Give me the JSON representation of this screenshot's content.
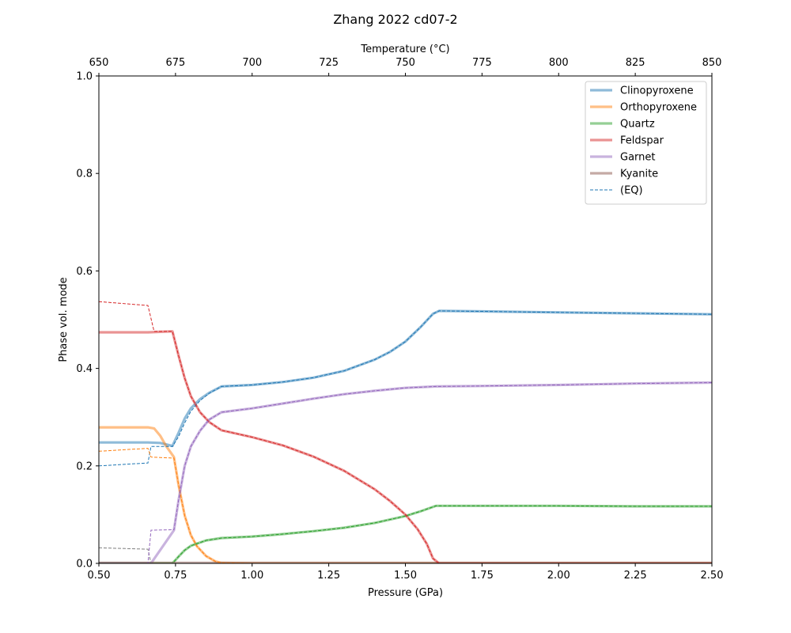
{
  "chart_data": {
    "type": "line",
    "title": "Zhang 2022 cd07-2",
    "xlabel": "Pressure (GPa)",
    "ylabel": "Phase vol. mode",
    "x2label": "Temperature (°C)",
    "xlim": [
      0.5,
      2.5
    ],
    "ylim": [
      0.0,
      1.0
    ],
    "x2lim": [
      650,
      850
    ],
    "xticks": [
      "0.50",
      "0.75",
      "1.00",
      "1.25",
      "1.50",
      "1.75",
      "2.00",
      "2.25",
      "2.50"
    ],
    "yticks": [
      "0.0",
      "0.2",
      "0.4",
      "0.6",
      "0.8",
      "1.0"
    ],
    "x2ticks": [
      "650",
      "675",
      "700",
      "725",
      "750",
      "775",
      "800",
      "825",
      "850"
    ],
    "grid": false,
    "legend_position": "top-right",
    "series": [
      {
        "name": "Clinopyroxene",
        "color": "#1f77b4",
        "x": [
          0.5,
          0.66,
          0.7,
          0.74,
          0.76,
          0.78,
          0.8,
          0.83,
          0.86,
          0.9,
          1.0,
          1.1,
          1.2,
          1.3,
          1.4,
          1.45,
          1.5,
          1.55,
          1.59,
          1.61,
          1.75,
          2.0,
          2.25,
          2.5
        ],
        "y": [
          0.248,
          0.248,
          0.247,
          0.241,
          0.268,
          0.297,
          0.318,
          0.337,
          0.35,
          0.363,
          0.366,
          0.372,
          0.381,
          0.395,
          0.418,
          0.434,
          0.455,
          0.485,
          0.512,
          0.518,
          0.517,
          0.515,
          0.513,
          0.511
        ],
        "eq_x": [
          0.5,
          0.66,
          0.67,
          0.74,
          0.76,
          0.78,
          0.8,
          0.83,
          0.86,
          0.9,
          1.0,
          1.1,
          1.2,
          1.3,
          1.4,
          1.45,
          1.5,
          1.55,
          1.59,
          1.61,
          1.75,
          2.0,
          2.25,
          2.5
        ],
        "eq_y": [
          0.2,
          0.206,
          0.24,
          0.24,
          0.26,
          0.288,
          0.312,
          0.334,
          0.349,
          0.363,
          0.366,
          0.372,
          0.381,
          0.395,
          0.418,
          0.434,
          0.455,
          0.485,
          0.512,
          0.518,
          0.517,
          0.515,
          0.513,
          0.511
        ]
      },
      {
        "name": "Orthopyroxene",
        "color": "#ff7f0e",
        "x": [
          0.5,
          0.66,
          0.68,
          0.7,
          0.72,
          0.745,
          0.76,
          0.78,
          0.8,
          0.82,
          0.85,
          0.88,
          0.9,
          1.0,
          2.5
        ],
        "y": [
          0.279,
          0.279,
          0.277,
          0.262,
          0.24,
          0.218,
          0.16,
          0.098,
          0.058,
          0.035,
          0.015,
          0.004,
          0.001,
          0.0,
          0.0
        ],
        "eq_x": [
          0.5,
          0.66,
          0.67,
          0.74,
          0.745,
          0.76,
          0.78,
          0.8,
          0.82,
          0.85,
          0.88,
          0.9,
          1.0,
          2.5
        ],
        "eq_y": [
          0.23,
          0.236,
          0.218,
          0.216,
          0.216,
          0.16,
          0.098,
          0.058,
          0.035,
          0.015,
          0.004,
          0.001,
          0.0,
          0.0
        ]
      },
      {
        "name": "Quartz",
        "color": "#2ca02c",
        "x": [
          0.5,
          0.74,
          0.76,
          0.78,
          0.8,
          0.85,
          0.9,
          1.0,
          1.1,
          1.2,
          1.3,
          1.4,
          1.5,
          1.55,
          1.6,
          1.75,
          2.0,
          2.25,
          2.5
        ],
        "y": [
          0.0,
          0.0,
          0.014,
          0.027,
          0.036,
          0.047,
          0.052,
          0.055,
          0.06,
          0.066,
          0.073,
          0.083,
          0.097,
          0.107,
          0.118,
          0.118,
          0.118,
          0.117,
          0.117
        ],
        "eq_x": [
          0.5,
          0.74,
          0.76,
          0.78,
          0.8,
          0.85,
          0.9,
          1.0,
          1.1,
          1.2,
          1.3,
          1.4,
          1.5,
          1.55,
          1.6,
          1.75,
          2.0,
          2.25,
          2.5
        ],
        "eq_y": [
          0.0,
          0.0,
          0.014,
          0.027,
          0.036,
          0.047,
          0.052,
          0.055,
          0.06,
          0.066,
          0.073,
          0.083,
          0.097,
          0.107,
          0.118,
          0.118,
          0.118,
          0.117,
          0.117
        ]
      },
      {
        "name": "Feldspar",
        "color": "#d62728",
        "x": [
          0.5,
          0.66,
          0.7,
          0.74,
          0.76,
          0.78,
          0.8,
          0.83,
          0.86,
          0.9,
          1.0,
          1.1,
          1.2,
          1.3,
          1.4,
          1.45,
          1.5,
          1.54,
          1.57,
          1.59,
          1.61,
          1.75,
          2.5
        ],
        "y": [
          0.474,
          0.474,
          0.475,
          0.476,
          0.426,
          0.38,
          0.343,
          0.31,
          0.29,
          0.273,
          0.259,
          0.242,
          0.219,
          0.19,
          0.152,
          0.128,
          0.1,
          0.07,
          0.04,
          0.01,
          0.0,
          0.0,
          0.0
        ],
        "eq_x": [
          0.5,
          0.66,
          0.68,
          0.74,
          0.76,
          0.78,
          0.8,
          0.83,
          0.86,
          0.9,
          1.0,
          1.1,
          1.2,
          1.3,
          1.4,
          1.45,
          1.5,
          1.54,
          1.57,
          1.59,
          1.61,
          1.75,
          2.5
        ],
        "eq_y": [
          0.537,
          0.529,
          0.476,
          0.476,
          0.426,
          0.38,
          0.343,
          0.31,
          0.29,
          0.273,
          0.259,
          0.242,
          0.219,
          0.19,
          0.152,
          0.128,
          0.1,
          0.07,
          0.04,
          0.01,
          0.0,
          0.0,
          0.0
        ]
      },
      {
        "name": "Garnet",
        "color": "#9467bd",
        "x": [
          0.5,
          0.67,
          0.745,
          0.76,
          0.78,
          0.8,
          0.83,
          0.86,
          0.9,
          1.0,
          1.1,
          1.2,
          1.3,
          1.4,
          1.5,
          1.6,
          1.75,
          2.0,
          2.25,
          2.5
        ],
        "y": [
          0.0,
          0.0,
          0.068,
          0.13,
          0.2,
          0.24,
          0.272,
          0.295,
          0.31,
          0.318,
          0.328,
          0.338,
          0.347,
          0.354,
          0.36,
          0.363,
          0.364,
          0.366,
          0.369,
          0.371
        ],
        "eq_x": [
          0.5,
          0.66,
          0.67,
          0.74,
          0.745,
          0.76,
          0.78,
          0.8,
          0.83,
          0.86,
          0.9,
          1.0,
          1.1,
          1.2,
          1.3,
          1.4,
          1.5,
          1.6,
          1.75,
          2.0,
          2.25,
          2.5
        ],
        "eq_y": [
          0.0,
          0.0,
          0.068,
          0.069,
          0.069,
          0.13,
          0.2,
          0.24,
          0.272,
          0.295,
          0.31,
          0.318,
          0.328,
          0.338,
          0.347,
          0.354,
          0.36,
          0.363,
          0.364,
          0.366,
          0.369,
          0.371
        ]
      },
      {
        "name": "Kyanite",
        "color": "#8c564b",
        "x": [
          0.5,
          2.5
        ],
        "y": [
          0.001,
          0.001
        ],
        "eq_x": [
          0.5,
          1.0,
          2.5
        ],
        "eq_y": [
          0.0,
          0.0,
          0.0
        ]
      }
    ],
    "extra_dashed_lines": [
      {
        "color": "#7f7f7f",
        "x": [
          0.5,
          0.66,
          0.67,
          0.68,
          2.5
        ],
        "y": [
          0.032,
          0.029,
          0.0,
          0.0,
          0.0
        ]
      }
    ],
    "legend_extra": {
      "name": "(EQ)",
      "color": "#1f77b4"
    }
  }
}
